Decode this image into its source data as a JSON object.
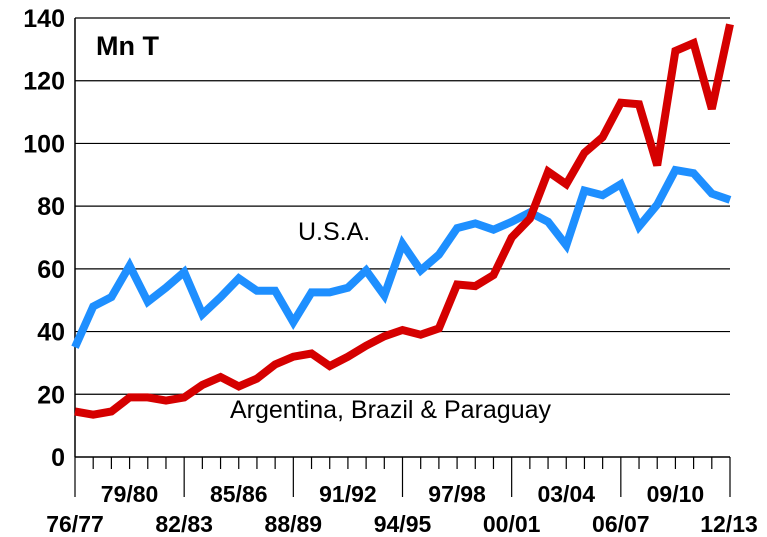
{
  "chart_data": {
    "type": "line",
    "unit_label": "Mn T",
    "ylim": [
      0,
      140
    ],
    "yticks": [
      0,
      20,
      40,
      60,
      80,
      100,
      120,
      140
    ],
    "grid": true,
    "x": [
      "76/77",
      "77/78",
      "78/79",
      "79/80",
      "80/81",
      "81/82",
      "82/83",
      "83/84",
      "84/85",
      "85/86",
      "86/87",
      "87/88",
      "88/89",
      "89/90",
      "90/91",
      "91/92",
      "92/93",
      "93/94",
      "94/95",
      "95/96",
      "96/97",
      "97/98",
      "98/99",
      "99/00",
      "00/01",
      "01/02",
      "02/03",
      "03/04",
      "04/05",
      "05/06",
      "06/07",
      "07/08",
      "08/09",
      "09/10",
      "10/11",
      "11/12",
      "12/13"
    ],
    "xtick_labels_upper": [
      "79/80",
      "85/86",
      "91/92",
      "97/98",
      "03/04",
      "09/10"
    ],
    "xtick_labels_lower": [
      "76/77",
      "82/83",
      "88/89",
      "94/95",
      "00/01",
      "06/07",
      "12/13"
    ],
    "series": [
      {
        "name": "U.S.A.",
        "color": "#1E8FFF",
        "values": [
          35,
          48,
          51,
          61,
          49.5,
          54,
          59,
          45.5,
          51,
          57,
          53,
          53,
          43,
          52.5,
          52.5,
          54,
          59.5,
          51.5,
          68,
          59.5,
          64.5,
          73,
          74.5,
          72.5,
          75,
          78,
          75,
          67.5,
          85,
          83.5,
          87,
          73.5,
          80.5,
          91.5,
          90.5,
          84,
          82
        ]
      },
      {
        "name": "Argentina, Brazil & Paraguay",
        "color": "#D50000",
        "values": [
          14.5,
          13.5,
          14.5,
          19,
          19,
          18,
          19,
          23,
          25.5,
          22.5,
          25,
          29.5,
          32,
          33,
          29,
          32,
          35.5,
          38.5,
          40.5,
          39,
          41,
          55,
          54.5,
          58,
          70,
          76,
          91,
          87,
          97,
          102,
          113,
          112.5,
          93,
          129.5,
          132,
          111,
          138
        ]
      }
    ]
  }
}
